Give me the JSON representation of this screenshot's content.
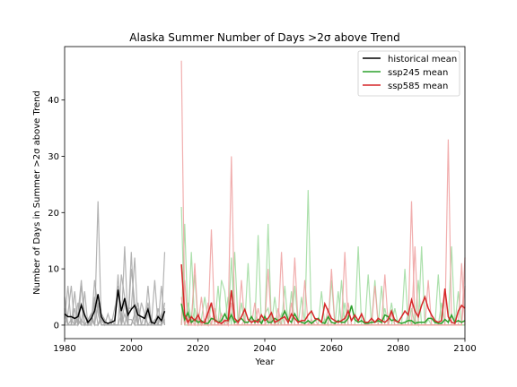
{
  "chart_data": {
    "type": "line",
    "title": "Alaska Summer Number of Days >2σ above Trend",
    "xlabel": "Year",
    "ylabel": "Number of Days in Summer >2σ above Trend",
    "xlim": [
      1980,
      2100
    ],
    "ylim": [
      -2.4,
      49.5
    ],
    "xticks": [
      1980,
      2000,
      2020,
      2040,
      2060,
      2080,
      2100
    ],
    "yticks": [
      0,
      10,
      20,
      30,
      40
    ],
    "grid": false,
    "legend_position": "top-right",
    "colors": {
      "historical": "#000000",
      "historical_members": "#a6a6a6",
      "ssp245": "#2ca02c",
      "ssp245_members": "#9edb9e",
      "ssp585": "#d62728",
      "ssp585_members": "#eea0a0"
    },
    "series": [
      {
        "name": "historical mean",
        "key": "historical",
        "x_start": 1980,
        "values": [
          2.0,
          1.5,
          1.5,
          1.2,
          1.5,
          3.5,
          1.8,
          0.5,
          1.2,
          2.5,
          5.5,
          1.5,
          0.5,
          0.3,
          0.5,
          0.8,
          6.3,
          2.5,
          4.8,
          1.8,
          2.8,
          3.5,
          1.8,
          1.5,
          1.2,
          2.8,
          0.5,
          0.3,
          1.5,
          0.8,
          2.5
        ]
      },
      {
        "name": "ssp245 mean",
        "key": "ssp245",
        "x_start": 2015,
        "values": [
          3.8,
          1.0,
          2.2,
          0.5,
          1.0,
          0.5,
          0.8,
          0.3,
          0.3,
          1.2,
          1.0,
          0.5,
          0.8,
          2.0,
          0.8,
          1.8,
          0.5,
          0.8,
          1.2,
          0.5,
          0.5,
          1.5,
          0.5,
          1.0,
          0.3,
          1.5,
          0.5,
          0.5,
          1.2,
          0.8,
          1.2,
          2.5,
          1.0,
          0.5,
          2.0,
          0.8,
          0.5,
          0.3,
          0.8,
          0.3,
          0.8,
          1.2,
          0.5,
          0.3,
          1.5,
          0.5,
          0.3,
          0.8,
          0.5,
          0.5,
          1.2,
          3.5,
          1.0,
          0.5,
          0.8,
          0.3,
          0.3,
          0.5,
          0.5,
          0.8,
          0.5,
          1.8,
          1.5,
          0.8,
          1.0,
          0.5,
          0.3,
          0.5,
          0.8,
          0.8,
          0.3,
          0.5,
          0.5,
          0.5,
          1.2,
          1.2,
          0.5,
          0.3,
          0.3,
          1.0,
          0.5,
          1.8,
          0.5,
          0.8,
          0.5,
          0.8
        ]
      },
      {
        "name": "ssp585 mean",
        "key": "ssp585",
        "x_start": 2015,
        "values": [
          10.8,
          1.8,
          0.5,
          1.5,
          0.8,
          1.8,
          0.5,
          0.5,
          2.2,
          4.0,
          0.8,
          0.5,
          0.3,
          0.8,
          0.8,
          6.2,
          1.2,
          0.5,
          1.5,
          2.8,
          1.0,
          0.5,
          0.8,
          0.5,
          1.8,
          0.8,
          1.2,
          2.2,
          0.5,
          0.8,
          1.2,
          1.5,
          0.5,
          2.0,
          1.2,
          0.5,
          0.8,
          0.8,
          1.8,
          2.5,
          1.2,
          1.0,
          0.5,
          3.8,
          2.5,
          1.2,
          0.8,
          0.5,
          0.8,
          1.2,
          2.5,
          0.8,
          1.8,
          0.8,
          2.0,
          0.5,
          0.5,
          1.2,
          0.5,
          1.2,
          0.8,
          0.5,
          1.0,
          2.5,
          0.8,
          0.5,
          1.5,
          2.5,
          1.8,
          4.5,
          2.5,
          1.5,
          3.5,
          5.0,
          3.0,
          1.8,
          0.8,
          0.5,
          0.8,
          6.5,
          1.5,
          0.5,
          0.3,
          2.5,
          3.5,
          3.0
        ]
      }
    ],
    "member_series": [
      {
        "key": "historical_members",
        "x_start": 1980,
        "values": [
          5,
          0,
          0,
          3,
          0,
          7,
          2,
          0,
          1,
          0,
          4,
          0,
          0,
          0,
          0,
          0,
          9,
          0,
          14,
          0,
          13,
          0,
          0,
          0,
          0,
          0,
          0,
          1,
          0,
          0,
          13
        ]
      },
      {
        "key": "historical_members",
        "x_start": 1980,
        "values": [
          0,
          2,
          7,
          0,
          2,
          8,
          0,
          0,
          2,
          0,
          22,
          0,
          0,
          0,
          1,
          0,
          0,
          2,
          0,
          0,
          10,
          4,
          0,
          0,
          0,
          2,
          0,
          0,
          0,
          7,
          0
        ]
      },
      {
        "key": "historical_members",
        "x_start": 1980,
        "values": [
          1,
          7,
          0,
          0,
          4,
          0,
          6,
          0,
          0,
          4,
          0,
          1,
          0,
          2,
          0,
          3,
          6,
          0,
          0,
          3,
          3,
          12,
          0,
          0,
          2,
          0,
          0,
          8,
          0,
          0,
          4
        ]
      },
      {
        "key": "historical_members",
        "x_start": 1980,
        "values": [
          3,
          0,
          0,
          6,
          0,
          1,
          0,
          0,
          0,
          8,
          3,
          0,
          0,
          0,
          0,
          0,
          0,
          9,
          5,
          0,
          0,
          2,
          4,
          0,
          0,
          7,
          0,
          0,
          3,
          0,
          1
        ]
      },
      {
        "key": "historical_members",
        "x_start": 1980,
        "values": [
          0,
          0,
          1,
          0,
          0,
          4,
          0,
          1,
          2,
          0,
          0,
          2,
          1,
          0,
          0,
          0,
          7,
          0,
          2,
          0,
          0,
          2,
          0,
          4,
          2,
          0,
          1,
          0,
          0,
          0,
          3
        ]
      },
      {
        "key": "historical_members",
        "x_start": 1980,
        "values": [
          2,
          0,
          0,
          0,
          1,
          0,
          0,
          1,
          0,
          5,
          2,
          0,
          0,
          0,
          0,
          0,
          0,
          0,
          4,
          1,
          1,
          0,
          3,
          0,
          0,
          4,
          1,
          0,
          0,
          2,
          0
        ]
      },
      {
        "key": "ssp245_members",
        "x_start": 2015,
        "values": [
          21,
          0,
          4,
          1,
          9,
          0,
          1,
          5,
          1,
          0,
          0,
          0,
          8,
          6,
          0,
          12,
          0,
          0,
          4,
          0,
          0,
          0,
          0,
          16,
          0,
          2,
          3,
          0,
          5,
          0,
          0,
          7,
          0,
          0,
          7,
          0,
          0,
          0,
          24,
          0,
          0,
          0,
          0,
          1,
          0,
          8,
          0,
          0,
          8,
          0,
          0,
          0,
          0,
          14,
          0,
          0,
          0,
          0,
          8,
          0,
          0,
          3,
          0,
          4,
          0,
          0,
          0,
          0,
          0,
          3,
          0,
          8,
          0,
          0,
          1,
          0,
          0,
          0,
          4,
          0,
          0,
          14,
          0,
          0,
          0,
          0
        ]
      },
      {
        "key": "ssp245_members",
        "x_start": 2015,
        "values": [
          0,
          18,
          0,
          0,
          3,
          0,
          0,
          1,
          0,
          4,
          0,
          0,
          0,
          0,
          5,
          0,
          13,
          0,
          0,
          0,
          11,
          0,
          0,
          0,
          0,
          0,
          18,
          0,
          0,
          0,
          2,
          0,
          0,
          6,
          0,
          0,
          5,
          0,
          0,
          0,
          0,
          0,
          6,
          0,
          0,
          0,
          0,
          6,
          0,
          4,
          0,
          0,
          0,
          0,
          0,
          0,
          9,
          0,
          0,
          0,
          7,
          0,
          0,
          0,
          3,
          0,
          0,
          10,
          0,
          0,
          1,
          0,
          14,
          0,
          0,
          0,
          0,
          0,
          0,
          0,
          0,
          0,
          0,
          6,
          0,
          0
        ]
      },
      {
        "key": "ssp245_members",
        "x_start": 2015,
        "values": [
          4,
          0,
          0,
          13,
          0,
          2,
          0,
          0,
          0,
          0,
          0,
          7,
          0,
          0,
          0,
          2,
          0,
          0,
          0,
          0,
          0,
          0,
          0,
          0,
          0,
          0,
          0,
          2,
          0,
          1,
          0,
          0,
          0,
          0,
          0,
          0,
          0,
          0,
          0,
          0,
          0,
          0,
          0,
          0,
          0,
          0,
          0,
          0,
          0,
          0,
          0,
          0,
          0,
          0,
          0,
          0,
          0,
          0,
          0,
          0,
          0,
          0,
          0,
          0,
          0,
          0,
          0,
          0,
          2,
          0,
          0,
          0,
          0,
          0,
          0,
          0,
          0,
          9,
          0,
          0,
          0,
          0,
          0,
          0,
          0,
          0
        ]
      },
      {
        "key": "ssp585_members",
        "x_start": 2015,
        "values": [
          47,
          2,
          0,
          1,
          0,
          2,
          0,
          1,
          0,
          17,
          0,
          0,
          0,
          1,
          0,
          30,
          1,
          0,
          0,
          0,
          0,
          0,
          0,
          0,
          0,
          0,
          1,
          0,
          0,
          0,
          0,
          0,
          0,
          0,
          12,
          0,
          0,
          0,
          0,
          0,
          1,
          0,
          0,
          0,
          0,
          10,
          0,
          0,
          0,
          0,
          0,
          0,
          0,
          0,
          0,
          0,
          0,
          0,
          0,
          0,
          0,
          0,
          0,
          0,
          0,
          0,
          0,
          0,
          0,
          22,
          0,
          0,
          0,
          0,
          0,
          0,
          0,
          0,
          0,
          0,
          33,
          0,
          0,
          0,
          0,
          12
        ]
      },
      {
        "key": "ssp585_members",
        "x_start": 2015,
        "values": [
          0,
          8,
          0,
          0,
          11,
          0,
          0,
          0,
          4,
          0,
          0,
          0,
          2,
          0,
          0,
          0,
          0,
          0,
          8,
          0,
          0,
          0,
          4,
          0,
          0,
          0,
          10,
          0,
          0,
          0,
          13,
          0,
          0,
          0,
          0,
          0,
          0,
          8,
          0,
          0,
          0,
          0,
          0,
          0,
          0,
          0,
          0,
          0,
          0,
          13,
          0,
          0,
          0,
          0,
          0,
          0,
          0,
          0,
          7,
          0,
          0,
          9,
          0,
          0,
          0,
          0,
          0,
          0,
          0,
          0,
          14,
          0,
          0,
          0,
          0,
          0,
          0,
          0,
          0,
          0,
          0,
          0,
          0,
          0,
          11,
          0
        ]
      },
      {
        "key": "ssp585_members",
        "x_start": 2015,
        "values": [
          5,
          0,
          2,
          0,
          0,
          0,
          5,
          0,
          0,
          0,
          3,
          0,
          0,
          0,
          0,
          4,
          0,
          0,
          0,
          1,
          0,
          0,
          0,
          3,
          0,
          0,
          0,
          0,
          0,
          3,
          0,
          0,
          0,
          4,
          0,
          0,
          0,
          0,
          0,
          1,
          0,
          0,
          0,
          0,
          3,
          0,
          0,
          0,
          0,
          0,
          4,
          0,
          0,
          0,
          0,
          0,
          0,
          0,
          0,
          0,
          0,
          0,
          0,
          2,
          0,
          0,
          0,
          0,
          0,
          0,
          0,
          0,
          0,
          0,
          8,
          0,
          0,
          0,
          0,
          0,
          0,
          0,
          0,
          0,
          0,
          7
        ]
      }
    ]
  }
}
